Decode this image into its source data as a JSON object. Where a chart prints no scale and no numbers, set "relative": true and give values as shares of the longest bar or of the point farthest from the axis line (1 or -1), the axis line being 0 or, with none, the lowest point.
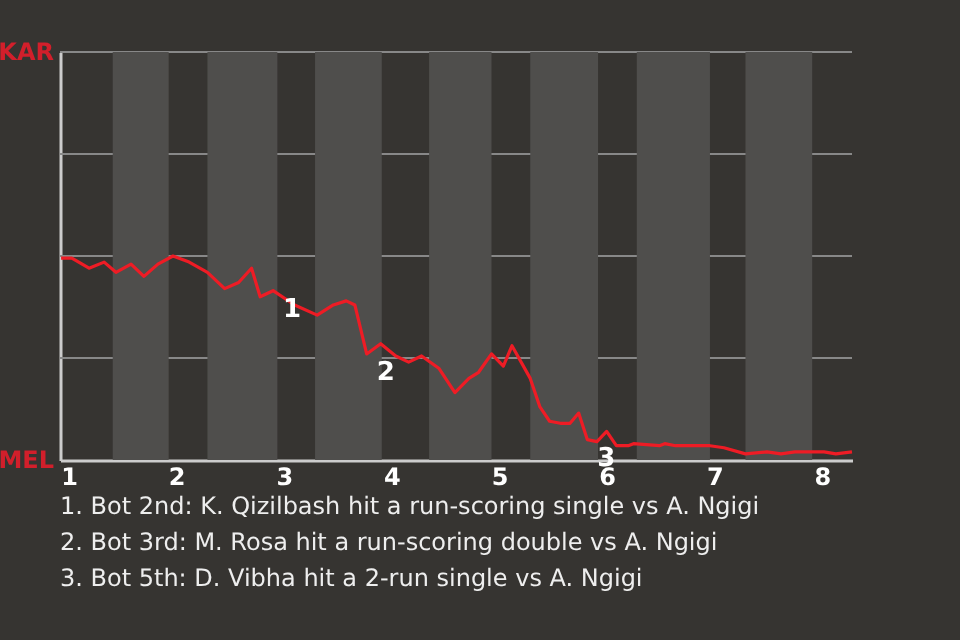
{
  "chart_data": {
    "type": "line",
    "x": [
      0.93,
      1.03,
      1.19,
      1.33,
      1.44,
      1.58,
      1.7,
      1.83,
      1.97,
      2.12,
      2.29,
      2.45,
      2.58,
      2.7,
      2.78,
      2.9,
      3.1,
      3.31,
      3.46,
      3.58,
      3.66,
      3.77,
      3.9,
      4.04,
      4.16,
      4.28,
      4.44,
      4.59,
      4.72,
      4.81,
      4.93,
      5.04,
      5.12,
      5.29,
      5.38,
      5.47,
      5.57,
      5.66,
      5.74,
      5.82,
      5.91,
      6.0,
      6.09,
      6.2,
      6.25,
      6.49,
      6.54,
      6.64,
      6.96,
      7.09,
      7.29,
      7.49,
      7.62,
      7.75,
      8.02,
      8.13,
      8.28
    ],
    "series": [
      {
        "color": "#ee1c25",
        "values": [
          0.99,
          0.99,
          0.94,
          0.97,
          0.92,
          0.96,
          0.9,
          0.96,
          1,
          0.97,
          0.92,
          0.84,
          0.87,
          0.94,
          0.8,
          0.83,
          0.76,
          0.71,
          0.76,
          0.78,
          0.76,
          0.52,
          0.57,
          0.51,
          0.48,
          0.51,
          0.45,
          0.33,
          0.4,
          0.43,
          0.52,
          0.46,
          0.56,
          0.4,
          0.26,
          0.19,
          0.18,
          0.18,
          0.23,
          0.1,
          0.09,
          0.14,
          0.07,
          0.07,
          0.08,
          0.07,
          0.08,
          0.07,
          0.07,
          0.06,
          0.03,
          0.04,
          0.03,
          0.04,
          0.04,
          0.03,
          0.04
        ]
      }
    ],
    "relative": true,
    "xlim": [
      0.92,
      8.28
    ],
    "xticks": [
      1,
      2,
      3,
      4,
      5,
      6,
      7,
      8
    ],
    "ref_lines": [
      {
        "axis": "y",
        "value": 0.5,
        "color": "#888888"
      },
      {
        "axis": "y",
        "value": 1,
        "color": "#888888"
      },
      {
        "axis": "y",
        "value": 1.5,
        "color": "#888888"
      },
      {
        "axis": "y",
        "value": 2,
        "color": "#888888"
      }
    ],
    "bands": [
      {
        "axis": "x",
        "from": 1.41,
        "to": 1.93,
        "color": "#4f4e4c"
      },
      {
        "axis": "x",
        "from": 2.29,
        "to": 2.94,
        "color": "#4f4e4c"
      },
      {
        "axis": "x",
        "from": 3.29,
        "to": 3.91,
        "color": "#4f4e4c"
      },
      {
        "axis": "x",
        "from": 4.35,
        "to": 4.93,
        "color": "#4f4e4c"
      },
      {
        "axis": "x",
        "from": 5.29,
        "to": 5.92,
        "color": "#4f4e4c"
      },
      {
        "axis": "x",
        "from": 6.28,
        "to": 6.96,
        "color": "#4f4e4c"
      },
      {
        "axis": "x",
        "from": 7.29,
        "to": 7.91,
        "color": "#4f4e4c"
      }
    ],
    "annotations": [
      "KAR",
      "MEL",
      {
        "text": "1",
        "x": 2.9,
        "y": 0.83
      },
      {
        "text": "2",
        "x": 3.77,
        "y": 0.52
      },
      {
        "text": "3",
        "x": 5.82,
        "y": 0.1
      },
      "1. Bot 2nd: K. Qizilbash hit a run-scoring single vs A. Ngigi",
      "2. Bot 3rd: M. Rosa hit a run-scoring double vs A. Ngigi",
      "3. Bot 5th: D. Vibha hit a 2-run single vs A. Ngigi"
    ]
  }
}
